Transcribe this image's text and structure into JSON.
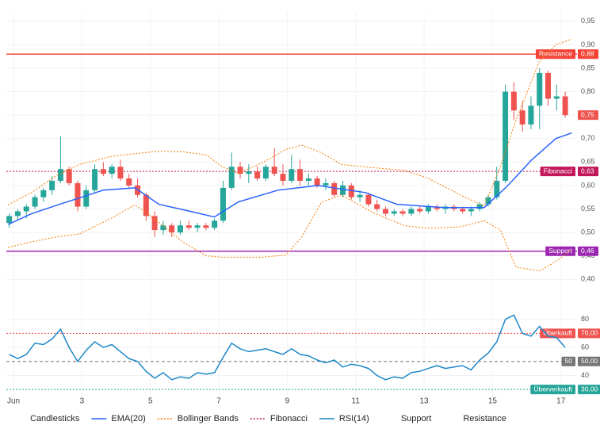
{
  "chart_data": {
    "type": "candlestick",
    "xlim": [
      0.79,
      17.47
    ],
    "ylim": [
      0.37,
      0.97
    ],
    "grid": true,
    "xticks": [
      {
        "value": 1,
        "label": "Jun"
      },
      3,
      5,
      7,
      9,
      11,
      13,
      15,
      17
    ],
    "yticks": [
      {
        "value": 0.4,
        "label": "0,40"
      },
      {
        "value": 0.45,
        "label": "0,45"
      },
      {
        "value": 0.5,
        "label": "0,50"
      },
      {
        "value": 0.55,
        "label": "0,55"
      },
      {
        "value": 0.6,
        "label": "0,60"
      },
      {
        "value": 0.65,
        "label": "0,65"
      },
      {
        "value": 0.7,
        "label": "0,70"
      },
      {
        "value": 0.75,
        "label": "0,75"
      },
      {
        "value": 0.8,
        "label": "0,80"
      },
      {
        "value": 0.85,
        "label": "0,85"
      },
      {
        "value": 0.9,
        "label": "0,90"
      },
      {
        "value": 0.95,
        "label": "0,95"
      }
    ],
    "x": [
      0.875,
      1.125,
      1.375,
      1.625,
      1.875,
      2.125,
      2.375,
      2.625,
      2.875,
      3.125,
      3.375,
      3.625,
      3.875,
      4.125,
      4.375,
      4.625,
      4.875,
      5.125,
      5.375,
      5.625,
      5.875,
      6.125,
      6.375,
      6.625,
      6.875,
      7.125,
      7.375,
      7.625,
      7.875,
      8.125,
      8.375,
      8.625,
      8.875,
      9.125,
      9.375,
      9.625,
      9.875,
      10.125,
      10.375,
      10.625,
      10.875,
      11.125,
      11.375,
      11.625,
      11.875,
      12.125,
      12.375,
      12.625,
      12.875,
      13.125,
      13.375,
      13.625,
      13.875,
      14.125,
      14.375,
      14.625,
      14.875,
      15.125,
      15.375,
      15.625,
      15.875,
      16.125,
      16.375,
      16.625,
      16.875,
      17.125
    ],
    "series": [
      {
        "name": "Candlesticks",
        "type": "candlestick",
        "up_color": "#26a69a",
        "down_color": "#ef5350",
        "last_value_label": "0,75",
        "open": [
          0.52,
          0.535,
          0.545,
          0.555,
          0.575,
          0.59,
          0.61,
          0.635,
          0.605,
          0.555,
          0.59,
          0.635,
          0.625,
          0.64,
          0.615,
          0.6,
          0.58,
          0.535,
          0.505,
          0.515,
          0.5,
          0.515,
          0.51,
          0.515,
          0.51,
          0.525,
          0.595,
          0.64,
          0.625,
          0.63,
          0.615,
          0.64,
          0.625,
          0.61,
          0.635,
          0.61,
          0.615,
          0.6,
          0.605,
          0.58,
          0.6,
          0.575,
          0.58,
          0.56,
          0.55,
          0.54,
          0.545,
          0.54,
          0.55,
          0.545,
          0.555,
          0.55,
          0.555,
          0.55,
          0.545,
          0.55,
          0.56,
          0.575,
          0.61,
          0.8,
          0.76,
          0.73,
          0.77,
          0.84,
          0.785,
          0.79
        ],
        "high": [
          0.54,
          0.55,
          0.56,
          0.58,
          0.595,
          0.62,
          0.705,
          0.64,
          0.61,
          0.6,
          0.645,
          0.65,
          0.645,
          0.655,
          0.625,
          0.615,
          0.585,
          0.545,
          0.525,
          0.52,
          0.525,
          0.525,
          0.52,
          0.52,
          0.53,
          0.61,
          0.67,
          0.65,
          0.645,
          0.64,
          0.645,
          0.68,
          0.645,
          0.665,
          0.655,
          0.625,
          0.62,
          0.615,
          0.61,
          0.61,
          0.605,
          0.59,
          0.585,
          0.57,
          0.555,
          0.55,
          0.55,
          0.555,
          0.555,
          0.56,
          0.56,
          0.56,
          0.56,
          0.555,
          0.555,
          0.565,
          0.58,
          0.64,
          0.815,
          0.82,
          0.78,
          0.79,
          0.85,
          0.845,
          0.815,
          0.8
        ],
        "low": [
          0.51,
          0.525,
          0.53,
          0.55,
          0.565,
          0.58,
          0.605,
          0.6,
          0.545,
          0.55,
          0.585,
          0.62,
          0.615,
          0.61,
          0.595,
          0.575,
          0.525,
          0.49,
          0.495,
          0.49,
          0.495,
          0.505,
          0.5,
          0.505,
          0.505,
          0.52,
          0.59,
          0.615,
          0.605,
          0.61,
          0.61,
          0.62,
          0.6,
          0.605,
          0.6,
          0.6,
          0.595,
          0.59,
          0.575,
          0.575,
          0.57,
          0.565,
          0.555,
          0.545,
          0.535,
          0.535,
          0.535,
          0.535,
          0.54,
          0.54,
          0.545,
          0.54,
          0.545,
          0.54,
          0.535,
          0.545,
          0.555,
          0.57,
          0.605,
          0.74,
          0.715,
          0.72,
          0.72,
          0.77,
          0.76,
          0.745
        ],
        "close": [
          0.535,
          0.545,
          0.555,
          0.575,
          0.59,
          0.61,
          0.635,
          0.605,
          0.555,
          0.59,
          0.635,
          0.625,
          0.64,
          0.615,
          0.6,
          0.58,
          0.535,
          0.505,
          0.515,
          0.5,
          0.515,
          0.51,
          0.515,
          0.51,
          0.525,
          0.595,
          0.64,
          0.625,
          0.63,
          0.615,
          0.64,
          0.625,
          0.61,
          0.635,
          0.61,
          0.615,
          0.6,
          0.605,
          0.58,
          0.6,
          0.575,
          0.58,
          0.56,
          0.55,
          0.54,
          0.545,
          0.54,
          0.55,
          0.545,
          0.555,
          0.55,
          0.555,
          0.55,
          0.545,
          0.55,
          0.56,
          0.575,
          0.61,
          0.8,
          0.76,
          0.73,
          0.77,
          0.84,
          0.785,
          0.79,
          0.75
        ]
      },
      {
        "name": "EMA(20)",
        "type": "line",
        "color": "#2962ff",
        "x": [
          0.84,
          1.53,
          2.35,
          3.62,
          4.55,
          5.25,
          6.17,
          6.87,
          7.57,
          8.73,
          9.89,
          11.28,
          12.21,
          13.6,
          14.76,
          15.45,
          16.15,
          16.85,
          17.31
        ],
        "values": [
          0.517,
          0.54,
          0.56,
          0.59,
          0.595,
          0.56,
          0.545,
          0.533,
          0.565,
          0.59,
          0.6,
          0.585,
          0.56,
          0.553,
          0.553,
          0.6,
          0.655,
          0.7,
          0.712
        ]
      },
      {
        "name": "Bollinger Bands",
        "type": "band",
        "color": "#f57c00",
        "x": [
          0.84,
          1.53,
          2.23,
          2.93,
          3.85,
          4.55,
          5.25,
          5.94,
          6.64,
          7.1,
          7.57,
          8.26,
          8.96,
          9.42,
          10.0,
          10.58,
          11.51,
          12.44,
          13.13,
          14.06,
          14.76,
          15.23,
          15.69,
          16.38,
          16.85,
          17.31
        ],
        "upper": [
          0.559,
          0.585,
          0.62,
          0.645,
          0.662,
          0.668,
          0.673,
          0.672,
          0.665,
          0.64,
          0.626,
          0.648,
          0.677,
          0.686,
          0.67,
          0.645,
          0.638,
          0.632,
          0.615,
          0.58,
          0.556,
          0.64,
          0.74,
          0.866,
          0.9,
          0.912
        ],
        "lower": [
          0.468,
          0.48,
          0.49,
          0.497,
          0.53,
          0.559,
          0.522,
          0.48,
          0.45,
          0.447,
          0.447,
          0.447,
          0.452,
          0.49,
          0.564,
          0.58,
          0.542,
          0.514,
          0.509,
          0.512,
          0.525,
          0.505,
          0.426,
          0.418,
          0.438,
          0.463
        ]
      }
    ],
    "levels": [
      {
        "name": "Fibonacci",
        "value": 0.63,
        "value_label": "0,63",
        "color": "#c2185b",
        "style": "dotted"
      },
      {
        "name": "Support",
        "value": 0.46,
        "value_label": "0,46",
        "color": "#9c27b0",
        "style": "solid"
      },
      {
        "name": "Resistance",
        "value": 0.88,
        "value_label": "0,88",
        "color": "#f44336",
        "style": "solid"
      }
    ],
    "rsi": {
      "name": "RSI(14)",
      "color": "#1e88c8",
      "ylim": [
        25,
        90
      ],
      "yticks": [
        40,
        60,
        80
      ],
      "values": [
        55,
        52,
        55,
        63,
        62,
        66,
        73,
        60,
        50,
        58,
        64,
        60,
        62,
        57,
        52,
        50,
        43,
        38,
        42,
        37,
        39,
        38,
        42,
        41,
        42,
        53,
        63,
        59,
        57,
        58,
        59,
        57,
        55,
        59,
        55,
        54,
        51,
        49,
        51,
        46,
        48,
        47,
        45,
        40,
        37,
        39,
        38,
        42,
        43,
        45,
        47,
        45,
        46,
        47,
        44,
        51,
        56,
        64,
        80,
        83,
        70,
        68,
        75,
        68,
        67,
        60
      ],
      "levels": [
        {
          "name": "Überkauft",
          "value": 70,
          "value_label": "70,00",
          "color": "#ef5350",
          "style": "dotted"
        },
        {
          "name": "50",
          "value": 50,
          "value_label": "50,00",
          "color": "#757575",
          "style": "dashed"
        },
        {
          "name": "Überverkauft",
          "value": 30,
          "value_label": "30,00",
          "color": "#26a69a",
          "style": "dotted"
        }
      ]
    }
  }
}
